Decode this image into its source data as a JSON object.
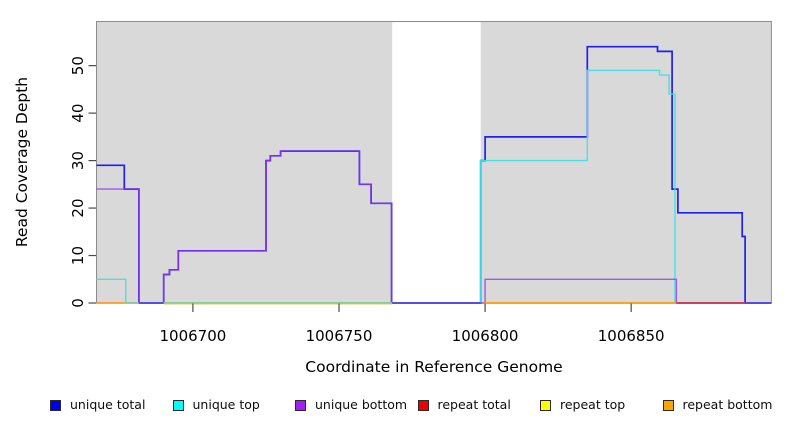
{
  "chart_data": {
    "type": "line",
    "subtype": "step-coverage",
    "title": "",
    "xlabel": "Coordinate in Reference Genome",
    "ylabel": "Read Coverage Depth",
    "xlim": [
      1006667,
      1006898
    ],
    "ylim": [
      0,
      59.3
    ],
    "x_ticks": [
      "1006700",
      "1006750",
      "1006800",
      "1006850"
    ],
    "x_tick_values": [
      1006700,
      1006750,
      1006800,
      1006850
    ],
    "y_ticks": [
      "0",
      "10",
      "20",
      "30",
      "40",
      "50"
    ],
    "y_tick_values": [
      0,
      10,
      20,
      30,
      40,
      50
    ],
    "grid": false,
    "legend_position": "bottom",
    "plot_background": "#d9d9d9",
    "plot_border": "#8c8c8c",
    "tick_color": "#4a4a4a",
    "label_color": "#000000",
    "missing_data_region": {
      "start": 1006768.2,
      "end": 1006798.5,
      "color": "#ffffff"
    },
    "series": [
      {
        "name": "unique total",
        "legend_color": "#0000ee",
        "line_color": "#2020ee",
        "width": 1.7,
        "opacity": 1,
        "points": [
          [
            1006667,
            29
          ],
          [
            1006676.5,
            24
          ],
          [
            1006681.5,
            0
          ],
          [
            1006690,
            6
          ],
          [
            1006692,
            7
          ],
          [
            1006695,
            11
          ],
          [
            1006725,
            30
          ],
          [
            1006726.5,
            31
          ],
          [
            1006730,
            32
          ],
          [
            1006757,
            25
          ],
          [
            1006761,
            21
          ],
          [
            1006768,
            0
          ],
          [
            1006798.5,
            30
          ],
          [
            1006800,
            35
          ],
          [
            1006835,
            54
          ],
          [
            1006859,
            53
          ],
          [
            1006864,
            24
          ],
          [
            1006866,
            19
          ],
          [
            1006888,
            14
          ],
          [
            1006889,
            0
          ],
          [
            1006898,
            0
          ]
        ]
      },
      {
        "name": "unique top",
        "legend_color": "#00ffff",
        "line_color": "#3fdfe9",
        "width": 1.4,
        "opacity": 0.95,
        "points": [
          [
            1006667,
            5
          ],
          [
            1006677,
            0
          ],
          [
            1006798.5,
            0
          ],
          [
            1006798.5,
            30
          ],
          [
            1006835,
            49
          ],
          [
            1006859.7,
            48
          ],
          [
            1006863,
            44
          ],
          [
            1006865,
            0
          ]
        ]
      },
      {
        "name": "unique bottom",
        "legend_color": "#a020f0",
        "line_color": "#9933ee",
        "width": 1.4,
        "opacity": 0.8,
        "points": [
          [
            1006667,
            24
          ],
          [
            1006681.5,
            0
          ],
          [
            1006690,
            6
          ],
          [
            1006692,
            7
          ],
          [
            1006695,
            11
          ],
          [
            1006725,
            30
          ],
          [
            1006726.5,
            31
          ],
          [
            1006730,
            32
          ],
          [
            1006757,
            25
          ],
          [
            1006761,
            21
          ],
          [
            1006768,
            0
          ],
          [
            1006799.5,
            0
          ],
          [
            1006800,
            5
          ],
          [
            1006865.5,
            0
          ],
          [
            1006898,
            0
          ]
        ]
      },
      {
        "name": "repeat total",
        "legend_color": "#ee0000",
        "line_color": "#c83250",
        "width": 1.6,
        "opacity": 1,
        "points": []
      },
      {
        "name": "repeat top",
        "legend_color": "#ffff00",
        "line_color": "#e8e464",
        "width": 1.2,
        "opacity": 1,
        "points": []
      },
      {
        "name": "repeat bottom",
        "legend_color": "#ffa500",
        "line_color": "#ff9900",
        "width": 1.6,
        "opacity": 1,
        "points": []
      }
    ],
    "zero_line_segments": [
      {
        "from": 1006667,
        "to": 1006676.7,
        "color": "#ff9a28",
        "series": "repeat bottom",
        "depth": 0
      },
      {
        "from": 1006676.7,
        "to": 1006681.5,
        "color": "#8cc88c",
        "series": "unique top + repeat top",
        "depth": 0
      },
      {
        "from": 1006681.5,
        "to": 1006690,
        "color": "#5a49e0",
        "series": "unique total + unique bottom",
        "depth": 0
      },
      {
        "from": 1006690,
        "to": 1006768.2,
        "color": "#8cc88c",
        "series": "unique top + repeat top",
        "depth": 0
      },
      {
        "from": 1006690,
        "to": 1006768.2,
        "color": "#ece4b4",
        "series": "repeat top",
        "depth": 0,
        "dy": 1.4
      },
      {
        "from": 1006768.2,
        "to": 1006798.5,
        "color": "#5a49e0",
        "series": "unique total + unique bottom",
        "depth": 0
      },
      {
        "from": 1006799.5,
        "to": 1006865.5,
        "color": "#ff9900",
        "series": "repeat bottom",
        "depth": 0
      },
      {
        "from": 1006865.5,
        "to": 1006889,
        "color": "#c83250",
        "series": "repeat total",
        "depth": 0
      },
      {
        "from": 1006889,
        "to": 1006898,
        "color": "#5a49e0",
        "series": "unique total + unique bottom",
        "depth": 0
      }
    ],
    "legend": [
      {
        "label": "unique total",
        "color": "#0000ee"
      },
      {
        "label": "unique top",
        "color": "#00ffff"
      },
      {
        "label": "unique bottom",
        "color": "#a020f0"
      },
      {
        "label": "repeat total",
        "color": "#ee0000"
      },
      {
        "label": "repeat top",
        "color": "#ffff00"
      },
      {
        "label": "repeat bottom",
        "color": "#ffa500"
      }
    ]
  }
}
